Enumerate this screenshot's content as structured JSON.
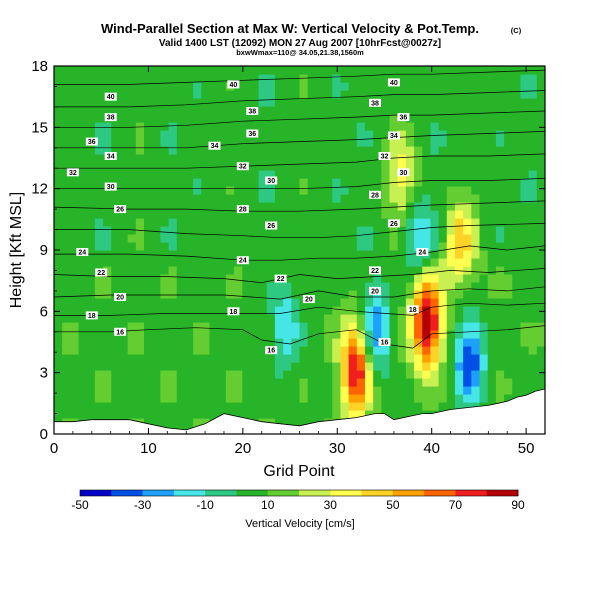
{
  "chart_data": {
    "type": "heatmap",
    "title": "Wind-Parallel Section at Max W: Vertical Velocity & Pot.Temp.",
    "title_mark": "(C)",
    "subtitle": "Valid 1400 LST (12092) MON 27 Aug 2007 [10hrFcst@0027z]",
    "subtitle2": "bxwWmax=110@ 34.05,21.38,1560m",
    "xlabel": "Grid Point",
    "ylabel": "Height [Kft MSL]",
    "xlim": [
      0,
      52
    ],
    "ylim": [
      0,
      18
    ],
    "xticks": [
      "0",
      "10",
      "20",
      "30",
      "40",
      "50"
    ],
    "yticks": [
      "0",
      "3",
      "6",
      "9",
      "12",
      "15",
      "18"
    ],
    "colorbar": {
      "label": "Vertical Velocity [cm/s]",
      "ticks": [
        "-50",
        "-30",
        "-10",
        "10",
        "30",
        "50",
        "70",
        "90"
      ],
      "range": [
        -50,
        90
      ],
      "step": 10,
      "colors": [
        "#0000c8",
        "#0050e6",
        "#1ea0ff",
        "#46e6e6",
        "#2dc882",
        "#28b428",
        "#64cd32",
        "#c8f050",
        "#ffff50",
        "#ffd228",
        "#ffa000",
        "#ff6400",
        "#f01e1e",
        "#b40000"
      ]
    },
    "field_features": [
      {
        "x": 32,
        "y": 3.2,
        "value": 75
      },
      {
        "x": 39.5,
        "y": 5.5,
        "value": 85
      },
      {
        "x": 44,
        "y": 3.6,
        "value": -45
      },
      {
        "x": 34,
        "y": 5.1,
        "value": -40
      },
      {
        "x": 24.5,
        "y": 5.3,
        "value": -25
      },
      {
        "x": 38.5,
        "y": 9.5,
        "value": -25
      },
      {
        "x": 43,
        "y": 9.5,
        "value": 40
      },
      {
        "x": 37,
        "y": 12.5,
        "value": 30
      }
    ],
    "theta_contours": [
      {
        "label": "16",
        "points": [
          [
            0,
            5.0
          ],
          [
            6,
            5.0
          ],
          [
            10,
            5.1
          ],
          [
            15,
            5.2
          ],
          [
            20,
            5.1
          ],
          [
            22,
            4.6
          ],
          [
            25,
            4.4
          ],
          [
            28,
            4.9
          ],
          [
            32,
            5.1
          ],
          [
            35,
            4.4
          ],
          [
            38,
            4.2
          ],
          [
            40,
            4.9
          ],
          [
            44,
            5.0
          ],
          [
            48,
            5.1
          ],
          [
            52,
            5.3
          ]
        ],
        "labels_at": [
          [
            7,
            5.0
          ],
          [
            23,
            4.1
          ],
          [
            35,
            4.5
          ]
        ]
      },
      {
        "label": "18",
        "points": [
          [
            0,
            5.8
          ],
          [
            6,
            5.8
          ],
          [
            12,
            5.9
          ],
          [
            20,
            5.9
          ],
          [
            24,
            5.9
          ],
          [
            28,
            6.2
          ],
          [
            32,
            6.0
          ],
          [
            35,
            5.9
          ],
          [
            38,
            5.8
          ],
          [
            40,
            6.2
          ],
          [
            44,
            6.4
          ],
          [
            48,
            6.3
          ],
          [
            52,
            6.4
          ]
        ],
        "labels_at": [
          [
            4,
            5.8
          ],
          [
            19,
            6.0
          ],
          [
            38,
            6.1
          ]
        ]
      },
      {
        "label": "20",
        "points": [
          [
            0,
            6.7
          ],
          [
            6,
            6.8
          ],
          [
            12,
            6.8
          ],
          [
            18,
            6.8
          ],
          [
            24,
            6.6
          ],
          [
            28,
            7.0
          ],
          [
            32,
            6.7
          ],
          [
            36,
            6.7
          ],
          [
            40,
            7.0
          ],
          [
            44,
            7.1
          ],
          [
            48,
            7.0
          ],
          [
            52,
            7.2
          ]
        ],
        "labels_at": [
          [
            7,
            6.7
          ],
          [
            27,
            6.6
          ],
          [
            34,
            7.0
          ]
        ]
      },
      {
        "label": "22",
        "points": [
          [
            0,
            7.8
          ],
          [
            6,
            7.7
          ],
          [
            12,
            7.7
          ],
          [
            18,
            7.6
          ],
          [
            22,
            7.4
          ],
          [
            26,
            7.8
          ],
          [
            30,
            7.6
          ],
          [
            34,
            7.7
          ],
          [
            38,
            7.8
          ],
          [
            42,
            8.0
          ],
          [
            46,
            7.9
          ],
          [
            52,
            8.1
          ]
        ],
        "labels_at": [
          [
            5,
            7.9
          ],
          [
            24,
            7.6
          ],
          [
            34,
            8.0
          ]
        ]
      },
      {
        "label": "24",
        "points": [
          [
            0,
            8.8
          ],
          [
            8,
            8.8
          ],
          [
            14,
            8.7
          ],
          [
            20,
            8.5
          ],
          [
            24,
            8.5
          ],
          [
            28,
            8.6
          ],
          [
            32,
            8.6
          ],
          [
            36,
            8.7
          ],
          [
            40,
            8.9
          ],
          [
            44,
            9.2
          ],
          [
            48,
            9.0
          ],
          [
            52,
            9.2
          ]
        ],
        "labels_at": [
          [
            3,
            8.9
          ],
          [
            20,
            8.5
          ],
          [
            39,
            8.9
          ]
        ]
      },
      {
        "label": "26",
        "points": [
          [
            0,
            10.0
          ],
          [
            8,
            10.0
          ],
          [
            14,
            9.8
          ],
          [
            20,
            9.7
          ],
          [
            24,
            9.6
          ],
          [
            28,
            9.6
          ],
          [
            32,
            9.7
          ],
          [
            36,
            9.9
          ],
          [
            40,
            10.1
          ],
          [
            44,
            10.2
          ],
          [
            52,
            10.3
          ]
        ],
        "labels_at": [
          [
            7,
            11.0
          ],
          [
            23,
            10.2
          ],
          [
            36,
            10.3
          ]
        ]
      },
      {
        "label": "28",
        "points": [
          [
            0,
            11.1
          ],
          [
            8,
            11.0
          ],
          [
            14,
            11.0
          ],
          [
            20,
            10.9
          ],
          [
            26,
            10.9
          ],
          [
            32,
            11.0
          ],
          [
            36,
            11.1
          ],
          [
            40,
            11.2
          ],
          [
            46,
            11.3
          ],
          [
            52,
            11.4
          ]
        ],
        "labels_at": [
          [
            20,
            11.0
          ],
          [
            34,
            11.7
          ]
        ]
      },
      {
        "label": "30",
        "points": [
          [
            0,
            12.0
          ],
          [
            8,
            12.0
          ],
          [
            14,
            12.0
          ],
          [
            20,
            12.0
          ],
          [
            26,
            12.0
          ],
          [
            32,
            12.1
          ],
          [
            36,
            12.3
          ],
          [
            40,
            12.4
          ],
          [
            46,
            12.4
          ],
          [
            52,
            12.5
          ]
        ],
        "labels_at": [
          [
            6,
            12.1
          ],
          [
            23,
            12.4
          ],
          [
            37,
            12.8
          ]
        ]
      },
      {
        "label": "32",
        "points": [
          [
            0,
            13.0
          ],
          [
            8,
            13.0
          ],
          [
            14,
            13.0
          ],
          [
            20,
            13.1
          ],
          [
            26,
            13.2
          ],
          [
            32,
            13.3
          ],
          [
            36,
            13.5
          ],
          [
            40,
            13.6
          ],
          [
            46,
            13.6
          ],
          [
            52,
            13.7
          ]
        ],
        "labels_at": [
          [
            2,
            12.8
          ],
          [
            20,
            13.1
          ],
          [
            35,
            13.6
          ]
        ]
      },
      {
        "label": "34",
        "points": [
          [
            0,
            14.0
          ],
          [
            8,
            14.0
          ],
          [
            14,
            14.0
          ],
          [
            20,
            14.2
          ],
          [
            26,
            14.3
          ],
          [
            32,
            14.4
          ],
          [
            36,
            14.5
          ],
          [
            40,
            14.6
          ],
          [
            46,
            14.7
          ],
          [
            52,
            14.8
          ]
        ],
        "labels_at": [
          [
            6,
            13.6
          ],
          [
            17,
            14.1
          ],
          [
            36,
            14.6
          ]
        ]
      },
      {
        "label": "36",
        "points": [
          [
            0,
            15.0
          ],
          [
            8,
            15.0
          ],
          [
            14,
            15.1
          ],
          [
            20,
            15.3
          ],
          [
            26,
            15.4
          ],
          [
            32,
            15.5
          ],
          [
            36,
            15.6
          ],
          [
            40,
            15.6
          ],
          [
            46,
            15.7
          ],
          [
            52,
            15.8
          ]
        ],
        "labels_at": [
          [
            4,
            14.3
          ],
          [
            21,
            14.7
          ],
          [
            37,
            15.5
          ]
        ]
      },
      {
        "label": "38",
        "points": [
          [
            0,
            16.0
          ],
          [
            8,
            16.0
          ],
          [
            14,
            16.1
          ],
          [
            20,
            16.3
          ],
          [
            26,
            16.4
          ],
          [
            32,
            16.5
          ],
          [
            36,
            16.6
          ],
          [
            40,
            16.6
          ],
          [
            46,
            16.7
          ],
          [
            52,
            16.8
          ]
        ],
        "labels_at": [
          [
            6,
            15.5
          ],
          [
            21,
            15.8
          ],
          [
            34,
            16.2
          ]
        ]
      },
      {
        "label": "40",
        "points": [
          [
            0,
            17.1
          ],
          [
            8,
            17.1
          ],
          [
            14,
            17.2
          ],
          [
            20,
            17.3
          ],
          [
            26,
            17.4
          ],
          [
            32,
            17.5
          ],
          [
            36,
            17.6
          ],
          [
            40,
            17.6
          ],
          [
            46,
            17.7
          ],
          [
            52,
            17.8
          ]
        ],
        "labels_at": [
          [
            6,
            16.5
          ],
          [
            19,
            17.1
          ],
          [
            36,
            17.2
          ]
        ]
      }
    ],
    "terrain": [
      [
        0,
        0.6
      ],
      [
        2,
        0.6
      ],
      [
        4,
        0.7
      ],
      [
        8,
        0.7
      ],
      [
        10,
        0.5
      ],
      [
        12,
        0.3
      ],
      [
        14,
        0.2
      ],
      [
        16,
        0.5
      ],
      [
        18,
        1.0
      ],
      [
        20,
        0.8
      ],
      [
        22,
        0.6
      ],
      [
        24,
        0.5
      ],
      [
        26,
        0.4
      ],
      [
        28,
        0.6
      ],
      [
        30,
        0.7
      ],
      [
        32,
        0.8
      ],
      [
        34,
        1.0
      ],
      [
        35,
        1.0
      ],
      [
        36,
        0.7
      ],
      [
        38,
        0.9
      ],
      [
        39,
        1.0
      ],
      [
        40,
        1.0
      ],
      [
        41,
        1.1
      ],
      [
        42,
        1.2
      ],
      [
        44,
        1.3
      ],
      [
        46,
        1.4
      ],
      [
        47,
        1.5
      ],
      [
        48,
        1.6
      ],
      [
        49,
        1.8
      ],
      [
        50,
        1.9
      ],
      [
        51,
        2.1
      ],
      [
        52,
        2.2
      ]
    ]
  }
}
